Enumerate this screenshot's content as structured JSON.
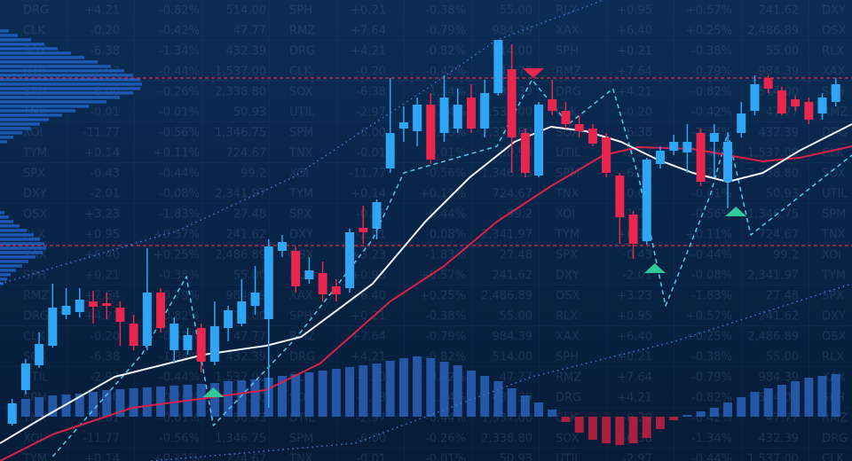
{
  "chart_data": {
    "type": "candlestick",
    "xlim": [
      -0.9,
      62.2
    ],
    "ylim": [
      0,
      520
    ],
    "up_color": "#2ea6f5",
    "down_color": "#e8264e",
    "open": [
      42,
      80,
      108,
      130,
      165,
      168,
      180,
      178,
      173,
      155,
      130,
      190,
      125,
      125,
      150,
      112,
      150,
      155,
      175,
      160,
      237,
      237,
      205,
      212,
      197,
      195,
      263,
      262,
      330,
      375,
      372,
      402,
      370,
      375,
      410,
      375,
      415,
      442,
      370,
      322,
      408,
      395,
      380,
      375,
      365,
      322,
      278,
      248,
      335,
      350,
      348,
      370,
      360,
      315,
      370,
      395,
      432,
      418,
      408,
      405,
      392,
      405
    ],
    "close": [
      65,
      110,
      132,
      173,
      175,
      182,
      174,
      175,
      157,
      130,
      190,
      150,
      155,
      142,
      112,
      152,
      170,
      180,
      190,
      242,
      247,
      197,
      215,
      188,
      188,
      258,
      258,
      292,
      370,
      382,
      402,
      340,
      410,
      402,
      375,
      415,
      475,
      365,
      325,
      402,
      395,
      380,
      372,
      358,
      325,
      275,
      245,
      340,
      350,
      360,
      360,
      315,
      370,
      360,
      392,
      425,
      420,
      392,
      400,
      385,
      410,
      425
    ],
    "high": [
      70,
      115,
      145,
      200,
      195,
      195,
      192,
      190,
      180,
      165,
      240,
      195,
      162,
      150,
      155,
      180,
      175,
      205,
      220,
      250,
      255,
      242,
      230,
      225,
      205,
      262,
      288,
      295,
      432,
      400,
      410,
      415,
      435,
      420,
      425,
      430,
      475,
      470,
      375,
      405,
      430,
      405,
      390,
      380,
      370,
      325,
      282,
      342,
      355,
      368,
      380,
      375,
      380,
      370,
      405,
      435,
      435,
      422,
      412,
      410,
      415,
      432
    ],
    "low": [
      40,
      75,
      105,
      128,
      160,
      162,
      155,
      160,
      130,
      125,
      125,
      145,
      110,
      120,
      100,
      108,
      135,
      152,
      165,
      60,
      230,
      190,
      200,
      180,
      180,
      190,
      245,
      250,
      325,
      360,
      355,
      335,
      360,
      370,
      370,
      365,
      412,
      325,
      320,
      320,
      390,
      375,
      365,
      355,
      320,
      245,
      228,
      244,
      330,
      345,
      325,
      310,
      320,
      285,
      365,
      390,
      415,
      390,
      395,
      380,
      385,
      400
    ],
    "lines": [
      {
        "style": "dotted",
        "color": "#3f79d6",
        "x": [
          -0.9,
          12.3,
          20.8,
          30.7,
          35.9,
          43.8
        ],
        "values": [
          200,
          260,
          320,
          420,
          475,
          520
        ]
      },
      {
        "style": "dotted",
        "color": "#3f79d6",
        "x": [
          10.3,
          25.4,
          38.5,
          49.1,
          62.2
        ],
        "values": [
          0,
          20,
          95,
          135,
          200
        ]
      },
      {
        "style": "dashed",
        "color": "#56c8ec",
        "x": [
          3.0,
          9.6,
          12.9,
          14.9,
          21.1,
          26.7,
          29.0,
          35.9,
          38.5,
          41.2,
          44.5,
          46.4,
          48.4,
          51.7,
          53.0,
          54.7,
          62.2
        ],
        "values": [
          5,
          120,
          208,
          40,
          140,
          250,
          325,
          355,
          430,
          380,
          420,
          320,
          175,
          300,
          370,
          255,
          345
        ]
      },
      {
        "style": "solid",
        "color": "#d8224a",
        "x": [
          -0.9,
          3.0,
          8.9,
          14.9,
          18.8,
          22.8,
          28.0,
          32.0,
          35.9,
          39.9,
          43.8,
          46.4,
          50.4,
          53.0,
          55.6,
          58.3,
          62.2
        ],
        "values": [
          0,
          30,
          60,
          72,
          80,
          110,
          180,
          220,
          270,
          310,
          345,
          354,
          352,
          345,
          338,
          342,
          355
        ]
      },
      {
        "style": "solid",
        "color": "#eef3f8",
        "x": [
          -0.9,
          2.4,
          7.6,
          14.2,
          18.8,
          21.4,
          26.7,
          30.6,
          33.9,
          37.2,
          39.9,
          42.5,
          45.1,
          47.8,
          50.4,
          53.0,
          55.6,
          58.3,
          62.2
        ],
        "values": [
          20,
          50,
          95,
          120,
          130,
          140,
          200,
          270,
          320,
          360,
          377,
          372,
          360,
          340,
          325,
          315,
          325,
          350,
          380
        ]
      }
    ],
    "levels": {
      "color": "#e0284f",
      "values": [
        432,
        243
      ]
    },
    "markers": [
      {
        "x": 14.9,
        "y": 83,
        "direction": "up",
        "color": "#2fc99a"
      },
      {
        "x": 47.6,
        "y": 223,
        "direction": "up",
        "color": "#2fc99a"
      },
      {
        "x": 53.6,
        "y": 287,
        "direction": "up",
        "color": "#2fc99a"
      },
      {
        "x": 38.6,
        "y": 432,
        "direction": "down",
        "color": "#e8264e"
      }
    ],
    "histogram": {
      "ylim": [
        -50,
        100
      ],
      "up_color": "#2a62b8",
      "down_color": "#c8203e",
      "values": [
        15,
        20,
        22,
        24,
        25,
        26,
        28,
        30,
        31,
        32,
        33,
        34,
        35,
        36,
        37,
        38,
        40,
        41,
        42,
        44,
        46,
        48,
        50,
        52,
        54,
        56,
        58,
        60,
        63,
        66,
        68,
        66,
        62,
        58,
        52,
        46,
        40,
        32,
        24,
        16,
        8,
        -6,
        -18,
        -26,
        -30,
        -32,
        -30,
        -24,
        -14,
        -4,
        2,
        6,
        10,
        16,
        22,
        28,
        32,
        36,
        40,
        44,
        46,
        48
      ]
    },
    "profile": {
      "color": "#1f5fc0",
      "xlim": [
        0,
        960
      ],
      "levels": [
        485,
        480,
        475,
        470,
        465,
        460,
        455,
        450,
        445,
        440,
        435,
        430,
        425,
        420,
        415,
        410,
        405,
        400,
        395,
        390,
        385,
        380,
        375,
        370,
        365,
        360,
        280,
        275,
        270,
        265,
        260,
        255,
        250,
        245,
        240,
        235,
        230,
        225,
        220,
        215,
        210,
        205,
        200
      ],
      "values": [
        10,
        20,
        35,
        50,
        65,
        80,
        95,
        110,
        125,
        140,
        150,
        158,
        160,
        158,
        150,
        135,
        120,
        100,
        85,
        70,
        55,
        45,
        35,
        25,
        15,
        8,
        5,
        10,
        15,
        22,
        30,
        38,
        45,
        50,
        52,
        48,
        40,
        32,
        25,
        18,
        12,
        8,
        4
      ]
    }
  },
  "ticker": {
    "rows": [
      [
        "DRG",
        "+4.21",
        "-0.82%",
        "514.00"
      ],
      [
        "SPM",
        "-6.00",
        "-0.26%",
        "2,338.80"
      ],
      [
        "SPX",
        "-0.43",
        "-0.44%",
        "99.2"
      ],
      [
        "XAX",
        "+6.40",
        "+0.25%",
        "2,486.89"
      ],
      [
        "CLK",
        "-0.20",
        "-0.42%",
        "47.77"
      ],
      [
        "TNX",
        "-0.01",
        "-0.01%",
        "50.93"
      ],
      [
        "DXY",
        "-2.01",
        "-0.08%",
        "2,341.97"
      ],
      [
        "SPH",
        "+0.21",
        "-0.38%",
        "55.00"
      ],
      [
        "SOX",
        "-6.38",
        "-1.34%",
        "432.39"
      ],
      [
        "XOI",
        "-11.77",
        "-0.56%",
        "1,346.75"
      ],
      [
        "OSX",
        "+3.23",
        "-1.83%",
        "27.48"
      ],
      [
        "RMZ",
        "+7.64",
        "-0.79%",
        "984.39"
      ],
      [
        "UTIL",
        "-2.97",
        "-0.44%",
        "1,537.00"
      ],
      [
        "TYM",
        "+0.14",
        "+0.11%",
        "724.67"
      ],
      [
        "RLX",
        "+0.95",
        "+0.57%",
        "241.62"
      ]
    ]
  }
}
